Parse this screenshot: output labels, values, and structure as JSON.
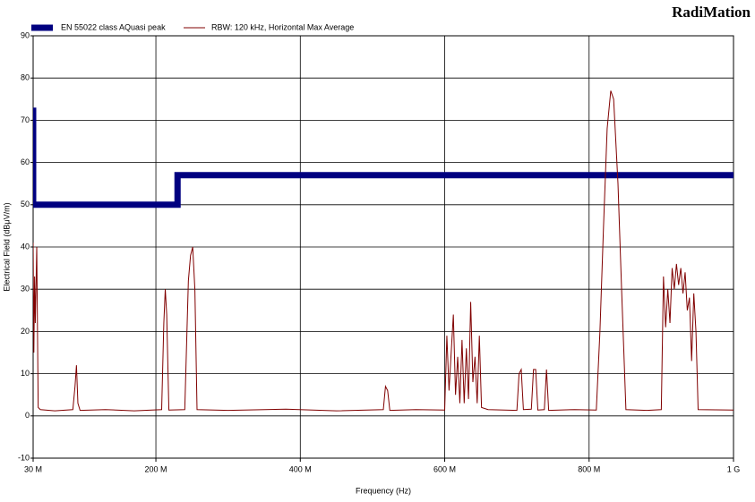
{
  "chart_data": {
    "type": "line",
    "brand": "RadiMation",
    "x_label": "Frequency (Hz)",
    "y_label": "Electrical Field (dBμV/m)",
    "xlim": [
      30000000,
      1000000000
    ],
    "xticks": [
      {
        "value": 30000000,
        "label": "30 M"
      },
      {
        "value": 200000000,
        "label": "200 M"
      },
      {
        "value": 400000000,
        "label": "400 M"
      },
      {
        "value": 600000000,
        "label": "600 M"
      },
      {
        "value": 800000000,
        "label": "800 M"
      },
      {
        "value": 1000000000,
        "label": "1 G"
      }
    ],
    "ylim": [
      -10,
      90
    ],
    "yticks": [
      -10,
      0,
      10,
      20,
      30,
      40,
      50,
      60,
      70,
      80,
      90
    ],
    "grid": true,
    "legend": "top",
    "series": [
      {
        "name": "EN 55022 class AQuasi peak",
        "color": "#000080",
        "width": 7,
        "x": [
          30000000,
          30000000,
          230000000,
          230000000,
          1000000000
        ],
        "values": [
          73,
          50,
          50,
          57,
          57
        ]
      },
      {
        "name": "RBW: 120 kHz, Horizontal Max Average",
        "color": "#800000",
        "width": 1,
        "x": [
          30000000,
          31000000,
          32000000,
          33000000,
          35000000,
          37000000,
          40000000,
          60000000,
          85000000,
          88000000,
          90000000,
          92000000,
          95000000,
          130000000,
          170000000,
          208000000,
          211000000,
          213000000,
          215000000,
          218000000,
          240000000,
          245000000,
          248000000,
          251000000,
          254000000,
          257000000,
          300000000,
          380000000,
          450000000,
          515000000,
          518000000,
          521000000,
          524000000,
          560000000,
          600000000,
          603000000,
          606000000,
          609000000,
          612000000,
          615000000,
          618000000,
          621000000,
          624000000,
          627000000,
          630000000,
          633000000,
          636000000,
          639000000,
          642000000,
          645000000,
          648000000,
          651000000,
          660000000,
          700000000,
          703000000,
          706000000,
          709000000,
          720000000,
          723000000,
          726000000,
          729000000,
          738000000,
          741000000,
          744000000,
          780000000,
          810000000,
          815000000,
          820000000,
          825000000,
          830000000,
          834000000,
          840000000,
          845000000,
          851000000,
          880000000,
          900000000,
          903000000,
          906000000,
          909000000,
          912000000,
          915000000,
          918000000,
          921000000,
          924000000,
          927000000,
          930000000,
          933000000,
          936000000,
          939000000,
          942000000,
          945000000,
          948000000,
          951000000,
          1000000000
        ],
        "values": [
          41,
          15,
          33,
          22,
          40,
          2,
          1.5,
          1.2,
          1.5,
          7,
          12,
          3,
          1.3,
          1.5,
          1.2,
          1.5,
          22,
          30,
          24,
          1.4,
          1.5,
          32,
          38,
          40,
          30,
          1.5,
          1.3,
          1.6,
          1.2,
          1.5,
          7,
          6,
          1.3,
          1.5,
          1.4,
          19,
          6,
          15,
          24,
          5,
          14,
          3,
          18,
          3,
          16,
          4,
          27,
          8,
          14,
          3,
          19,
          2,
          1.5,
          1.3,
          10,
          11,
          1.5,
          1.6,
          11,
          11,
          1.4,
          1.5,
          11,
          1.3,
          1.5,
          1.4,
          20,
          45,
          68,
          77,
          75,
          55,
          30,
          1.5,
          1.3,
          1.5,
          33,
          21,
          30,
          22,
          35,
          30,
          36,
          31,
          35,
          29,
          34,
          25,
          28,
          13,
          29,
          20,
          1.5,
          1.4
        ]
      }
    ]
  }
}
